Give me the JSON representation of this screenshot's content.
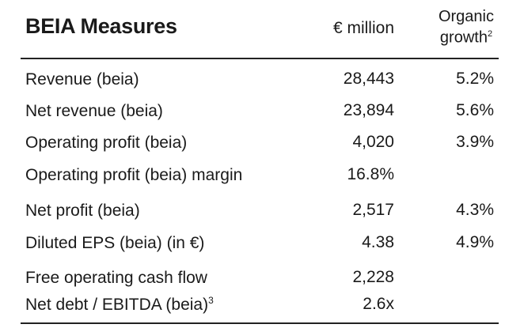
{
  "header": {
    "title": "BEIA Measures",
    "col_million": "€ million",
    "col_organic_line1": "Organic",
    "col_organic_line2": "growth",
    "col_organic_note": "2"
  },
  "rows": [
    {
      "label": "Revenue (beia)",
      "note": "",
      "value": "28,443",
      "growth": "5.2%"
    },
    {
      "label": "Net revenue (beia)",
      "note": "",
      "value": "23,894",
      "growth": "5.6%"
    },
    {
      "label": "Operating profit (beia)",
      "note": "",
      "value": "4,020",
      "growth": "3.9%"
    },
    {
      "label": "Operating profit (beia) margin",
      "note": "",
      "value": "16.8%",
      "growth": ""
    },
    {
      "label": "Net profit (beia)",
      "note": "",
      "value": "2,517",
      "growth": "4.3%"
    },
    {
      "label": "Diluted EPS (beia) (in €)",
      "note": "",
      "value": "4.38",
      "growth": "4.9%"
    },
    {
      "label": "Free operating cash flow",
      "note": "",
      "value": "2,228",
      "growth": ""
    },
    {
      "label": "Net debt / EBITDA (beia)",
      "note": "3",
      "value": "2.6x",
      "growth": ""
    }
  ]
}
